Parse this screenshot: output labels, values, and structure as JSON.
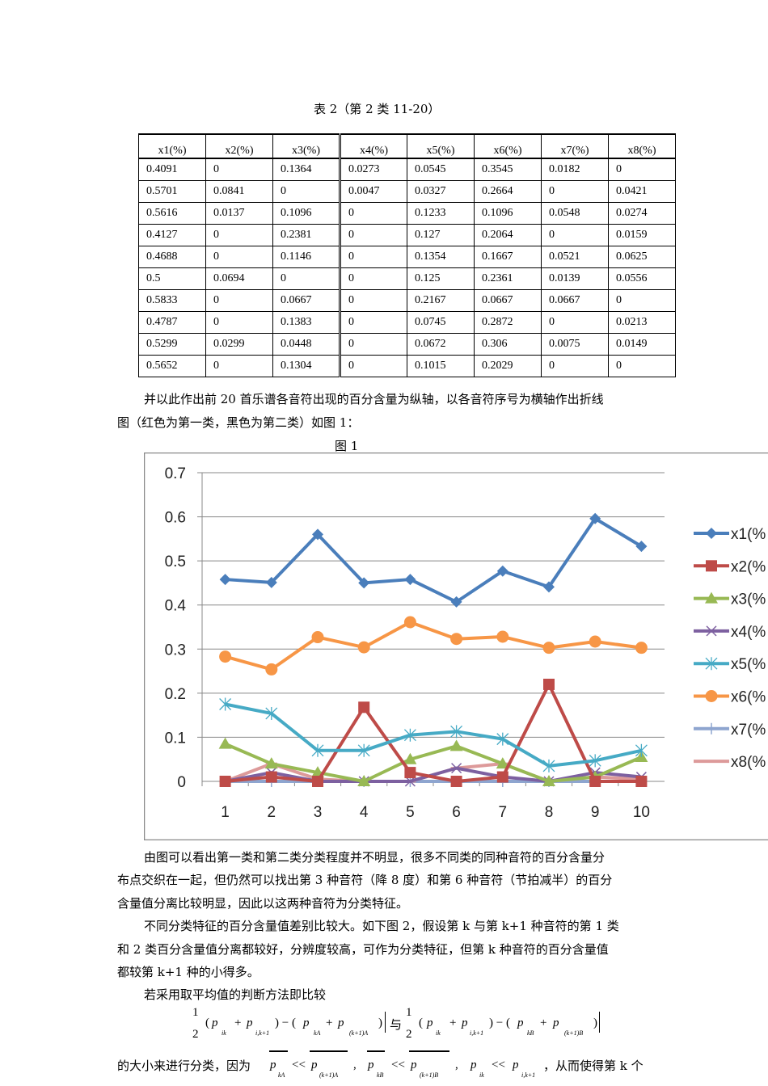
{
  "table": {
    "caption": "表 2（第 2 类 11-20）",
    "headers": [
      "x1(%)",
      "x2(%)",
      "x3(%)",
      "x4(%)",
      "x5(%)",
      "x6(%)",
      "x7(%)",
      "x8(%)"
    ],
    "rows": [
      [
        "0.4091",
        "0",
        "0.1364",
        "0.0273",
        "0.0545",
        "0.3545",
        "0.0182",
        "0"
      ],
      [
        "0.5701",
        "0.0841",
        "0",
        "0.0047",
        "0.0327",
        "0.2664",
        "0",
        "0.0421"
      ],
      [
        "0.5616",
        "0.0137",
        "0.1096",
        "0",
        "0.1233",
        "0.1096",
        "0.0548",
        "0.0274"
      ],
      [
        "0.4127",
        "0",
        "0.2381",
        "0",
        "0.127",
        "0.2064",
        "0",
        "0.0159"
      ],
      [
        "0.4688",
        "0",
        "0.1146",
        "0",
        "0.1354",
        "0.1667",
        "0.0521",
        "0.0625"
      ],
      [
        "0.5",
        "0.0694",
        "0",
        "0",
        "0.125",
        "0.2361",
        "0.0139",
        "0.0556"
      ],
      [
        "0.5833",
        "0",
        "0.0667",
        "0",
        "0.2167",
        "0.0667",
        "0.0667",
        "0"
      ],
      [
        "0.4787",
        "0",
        "0.1383",
        "0",
        "0.0745",
        "0.2872",
        "0",
        "0.0213"
      ],
      [
        "0.5299",
        "0.0299",
        "0.0448",
        "0",
        "0.0672",
        "0.306",
        "0.0075",
        "0.0149"
      ],
      [
        "0.5652",
        "0",
        "0.1304",
        "0",
        "0.1015",
        "0.2029",
        "0",
        "0"
      ]
    ]
  },
  "intro": {
    "line1": "并以此作出前 20 首乐谱各音符出现的百分含量为纵轴，以各音符序号为横轴作出折线",
    "line2": "图（红色为第一类，黑色为第二类）如图 1："
  },
  "figure_caption": "图 1",
  "chart_data": {
    "type": "line",
    "categories": [
      "1",
      "2",
      "3",
      "4",
      "5",
      "6",
      "7",
      "8",
      "9",
      "10"
    ],
    "ylim": [
      0,
      0.7
    ],
    "yticks": [
      "0",
      "0.1",
      "0.2",
      "0.3",
      "0.4",
      "0.5",
      "0.6",
      "0.7"
    ],
    "grid": true,
    "legend_placement": "right",
    "series": [
      {
        "name": "x1(%",
        "color": "#4a7ebb",
        "marker": "diamond",
        "values": [
          0.458,
          0.451,
          0.56,
          0.45,
          0.458,
          0.407,
          0.477,
          0.441,
          0.596,
          0.533
        ]
      },
      {
        "name": "x2(%",
        "color": "#be4b48",
        "marker": "square",
        "values": [
          0,
          0.01,
          0,
          0.168,
          0.02,
          0,
          0.01,
          0.22,
          0,
          0
        ]
      },
      {
        "name": "x3(%",
        "color": "#98b954",
        "marker": "triangle",
        "values": [
          0.085,
          0.04,
          0.02,
          0,
          0.05,
          0.08,
          0.04,
          0,
          0.01,
          0.055
        ]
      },
      {
        "name": "x4(%",
        "color": "#7d60a0",
        "marker": "x",
        "values": [
          0,
          0.02,
          0,
          0,
          0,
          0.03,
          0.01,
          0,
          0.02,
          0.01
        ]
      },
      {
        "name": "x5(%",
        "color": "#46aac5",
        "marker": "star",
        "values": [
          0.175,
          0.154,
          0.07,
          0.07,
          0.105,
          0.113,
          0.096,
          0.035,
          0.047,
          0.07
        ]
      },
      {
        "name": "x6(%",
        "color": "#f79646",
        "marker": "circle",
        "values": [
          0.283,
          0.254,
          0.327,
          0.304,
          0.361,
          0.323,
          0.328,
          0.303,
          0.317,
          0.303
        ]
      },
      {
        "name": "x7(%",
        "color": "#8ea5cf",
        "marker": "plus",
        "values": [
          0,
          0,
          0,
          0,
          0,
          0,
          0,
          0,
          0,
          0
        ]
      },
      {
        "name": "x8(%",
        "color": "#dd9a9a",
        "marker": "dash",
        "values": [
          0,
          0.04,
          0.005,
          0,
          0,
          0.03,
          0.04,
          0,
          0.01,
          0.005
        ]
      }
    ]
  },
  "body": {
    "p1l1": "由图可以看出第一类和第二类分类程度并不明显，很多不同类的同种音符的百分含量分",
    "p1l2": "布点交织在一起，但仍然可以找出第 3 种音符（降 8 度）和第 6 种音符（节拍减半）的百分",
    "p1l3": "含量值分离比较明显，因此以这两种音符为分类特征。",
    "p2l1": "不同分类特征的百分含量值差别比较大。如下图 2，假设第 k 与第 k+1 种音符的第 1 类",
    "p2l2": "和 2 类百分含量值分离都较好，分辨度较高，可作为分类特征，但第 k 种音符的百分含量值",
    "p2l3": "都较第 k+1 种的小得多。",
    "p3": "若采用取平均值的判断方法即比较",
    "yu": "与",
    "p4a": "的大小来进行分类，因为",
    "p4b": "，从而使得第 k 个"
  }
}
